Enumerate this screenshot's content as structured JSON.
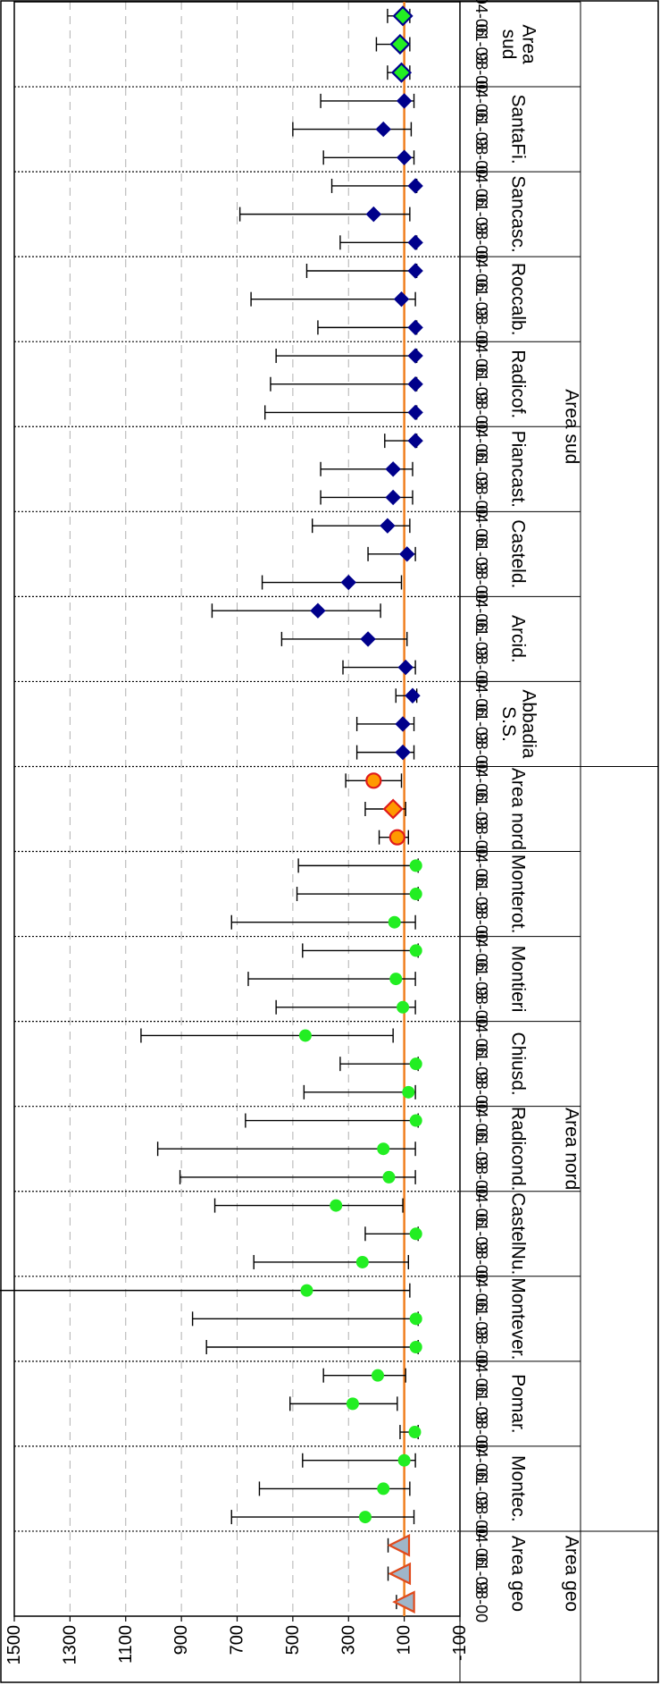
{
  "chart_data": {
    "type": "scatter",
    "orientation": "rotated-90-clockwise",
    "title": "",
    "xlabel": "",
    "ylabel": "",
    "ylim": [
      -100,
      1500
    ],
    "y_ticks": [
      "1500",
      "1300",
      "1100",
      "900",
      "700",
      "500",
      "300",
      "100",
      "-100"
    ],
    "reference_line": 100,
    "grid": "dashed",
    "groups": [
      {
        "name": "Area geo",
        "supergroup": "Area geo",
        "marker": "triangle",
        "color": "#9fb6c9",
        "edge": "#e04a1c",
        "points": [
          {
            "period": "98-00",
            "value": 100,
            "low": 88,
            "high": 128
          },
          {
            "period": "01-03",
            "value": 115,
            "low": 100,
            "high": 158
          },
          {
            "period": "04-06",
            "value": 118,
            "low": 100,
            "high": 158
          }
        ]
      },
      {
        "name": "Montec.",
        "supergroup": "Area nord",
        "marker": "circle",
        "color": "#22ee22",
        "points": [
          {
            "period": "98-00",
            "value": 240,
            "low": 65,
            "high": 720
          },
          {
            "period": "01-03",
            "value": 175,
            "low": 80,
            "high": 620
          },
          {
            "period": "04-06",
            "value": 100,
            "low": 60,
            "high": 465
          }
        ]
      },
      {
        "name": "Pomar.",
        "supergroup": "Area nord",
        "marker": "circle",
        "color": "#22ee22",
        "points": [
          {
            "period": "98-00",
            "value": 62,
            "low": 50,
            "high": 115
          },
          {
            "period": "01-03",
            "value": 285,
            "low": 125,
            "high": 510
          },
          {
            "period": "04-06",
            "value": 195,
            "low": 95,
            "high": 390
          }
        ]
      },
      {
        "name": "Montever.",
        "supergroup": "Area nord",
        "marker": "circle",
        "color": "#22ee22",
        "points": [
          {
            "period": "98-00",
            "value": 58,
            "low": 50,
            "high": 810
          },
          {
            "period": "01-03",
            "value": 58,
            "low": 50,
            "high": 860
          },
          {
            "period": "04-06",
            "value": 450,
            "low": 80,
            "high": 1560
          }
        ]
      },
      {
        "name": "CastelNu.",
        "supergroup": "Area nord",
        "marker": "circle",
        "color": "#22ee22",
        "points": [
          {
            "period": "98-00",
            "value": 250,
            "low": 85,
            "high": 640
          },
          {
            "period": "01-03",
            "value": 58,
            "low": 50,
            "high": 240
          },
          {
            "period": "04-06",
            "value": 345,
            "low": 105,
            "high": 780
          }
        ]
      },
      {
        "name": "Radicond.",
        "supergroup": "Area nord",
        "marker": "circle",
        "color": "#22ee22",
        "points": [
          {
            "period": "98-00",
            "value": 155,
            "low": 60,
            "high": 905
          },
          {
            "period": "01-03",
            "value": 175,
            "low": 60,
            "high": 985
          },
          {
            "period": "04-06",
            "value": 58,
            "low": 50,
            "high": 670
          }
        ]
      },
      {
        "name": "Chiusd.",
        "supergroup": "Area nord",
        "marker": "circle",
        "color": "#22ee22",
        "points": [
          {
            "period": "98-00",
            "value": 85,
            "low": 60,
            "high": 460
          },
          {
            "period": "01-03",
            "value": 58,
            "low": 50,
            "high": 330
          },
          {
            "period": "04-06",
            "value": 455,
            "low": 140,
            "high": 1045
          }
        ]
      },
      {
        "name": "Montieri",
        "supergroup": "Area nord",
        "marker": "circle",
        "color": "#22ee22",
        "points": [
          {
            "period": "98-00",
            "value": 105,
            "low": 60,
            "high": 560
          },
          {
            "period": "01-03",
            "value": 130,
            "low": 60,
            "high": 660
          },
          {
            "period": "04-06",
            "value": 58,
            "low": 50,
            "high": 465
          }
        ]
      },
      {
        "name": "Monterot.",
        "supergroup": "Area nord",
        "marker": "circle",
        "color": "#22ee22",
        "points": [
          {
            "period": "98-00",
            "value": 135,
            "low": 60,
            "high": 720
          },
          {
            "period": "01-03",
            "value": 58,
            "low": 50,
            "high": 485
          },
          {
            "period": "04-06",
            "value": 58,
            "low": 50,
            "high": 480
          }
        ]
      },
      {
        "name": "Area nord",
        "supergroup": "Area nord",
        "marker": "mixed",
        "color": "#ff9900",
        "edge": "#e01a1a",
        "points": [
          {
            "period": "98-00",
            "value": 125,
            "low": 85,
            "high": 190,
            "marker": "circle"
          },
          {
            "period": "01-03",
            "value": 140,
            "low": 95,
            "high": 240,
            "marker": "diamond"
          },
          {
            "period": "04-06",
            "value": 210,
            "low": 110,
            "high": 310,
            "marker": "circle"
          }
        ]
      },
      {
        "name": "Abbadia S.S.",
        "supergroup": "Area sud",
        "marker": "diamond",
        "color": "#00008b",
        "points": [
          {
            "period": "98-00",
            "value": 105,
            "low": 65,
            "high": 270
          },
          {
            "period": "01-03",
            "value": 105,
            "low": 65,
            "high": 270
          },
          {
            "period": "04-06",
            "value": 70,
            "low": 55,
            "high": 130
          }
        ]
      },
      {
        "name": "Arcid.",
        "supergroup": "Area sud",
        "marker": "diamond",
        "color": "#00008b",
        "points": [
          {
            "period": "98-00",
            "value": 95,
            "low": 60,
            "high": 320
          },
          {
            "period": "01-03",
            "value": 230,
            "low": 90,
            "high": 540
          },
          {
            "period": "04-06",
            "value": 410,
            "low": 185,
            "high": 790
          }
        ]
      },
      {
        "name": "Casteld.",
        "supergroup": "Area sud",
        "marker": "diamond",
        "color": "#00008b",
        "points": [
          {
            "period": "98-00",
            "value": 300,
            "low": 110,
            "high": 610
          },
          {
            "period": "01-03",
            "value": 90,
            "low": 60,
            "high": 230
          },
          {
            "period": "04-06",
            "value": 160,
            "low": 80,
            "high": 430
          }
        ]
      },
      {
        "name": "Piancast.",
        "supergroup": "Area sud",
        "marker": "diamond",
        "color": "#00008b",
        "points": [
          {
            "period": "98-00",
            "value": 140,
            "low": 70,
            "high": 400
          },
          {
            "period": "01-03",
            "value": 140,
            "low": 70,
            "high": 400
          },
          {
            "period": "04-06",
            "value": 60,
            "low": 55,
            "high": 170
          }
        ]
      },
      {
        "name": "Radicof.",
        "supergroup": "Area sud",
        "marker": "diamond",
        "color": "#00008b",
        "points": [
          {
            "period": "98-00",
            "value": 60,
            "low": 55,
            "high": 600
          },
          {
            "period": "01-03",
            "value": 60,
            "low": 55,
            "high": 580
          },
          {
            "period": "04-06",
            "value": 60,
            "low": 55,
            "high": 560
          }
        ]
      },
      {
        "name": "Roccalb.",
        "supergroup": "Area sud",
        "marker": "diamond",
        "color": "#00008b",
        "points": [
          {
            "period": "98-00",
            "value": 60,
            "low": 55,
            "high": 410
          },
          {
            "period": "01-03",
            "value": 110,
            "low": 60,
            "high": 650
          },
          {
            "period": "04-06",
            "value": 60,
            "low": 55,
            "high": 450
          }
        ]
      },
      {
        "name": "Sancasc.",
        "supergroup": "Area sud",
        "marker": "diamond",
        "color": "#00008b",
        "points": [
          {
            "period": "98-00",
            "value": 60,
            "low": 55,
            "high": 330
          },
          {
            "period": "01-03",
            "value": 210,
            "low": 80,
            "high": 690
          },
          {
            "period": "04-06",
            "value": 60,
            "low": 55,
            "high": 360
          }
        ]
      },
      {
        "name": "SantaFi.",
        "supergroup": "Area sud",
        "marker": "diamond",
        "color": "#00008b",
        "points": [
          {
            "period": "98-00",
            "value": 100,
            "low": 65,
            "high": 390
          },
          {
            "period": "01-03",
            "value": 175,
            "low": 75,
            "high": 500
          },
          {
            "period": "04-06",
            "value": 100,
            "low": 65,
            "high": 400
          }
        ]
      },
      {
        "name": "Area sud",
        "supergroup": "Area sud",
        "marker": "diamond",
        "color": "#22ee22",
        "edge": "#00008b",
        "points": [
          {
            "period": "98-00",
            "value": 110,
            "low": 80,
            "high": 160
          },
          {
            "period": "01-03",
            "value": 115,
            "low": 80,
            "high": 200
          },
          {
            "period": "04-06",
            "value": 105,
            "low": 80,
            "high": 160
          }
        ]
      }
    ],
    "supergroups": [
      "Area geo",
      "Area nord",
      "Area sud"
    ]
  }
}
